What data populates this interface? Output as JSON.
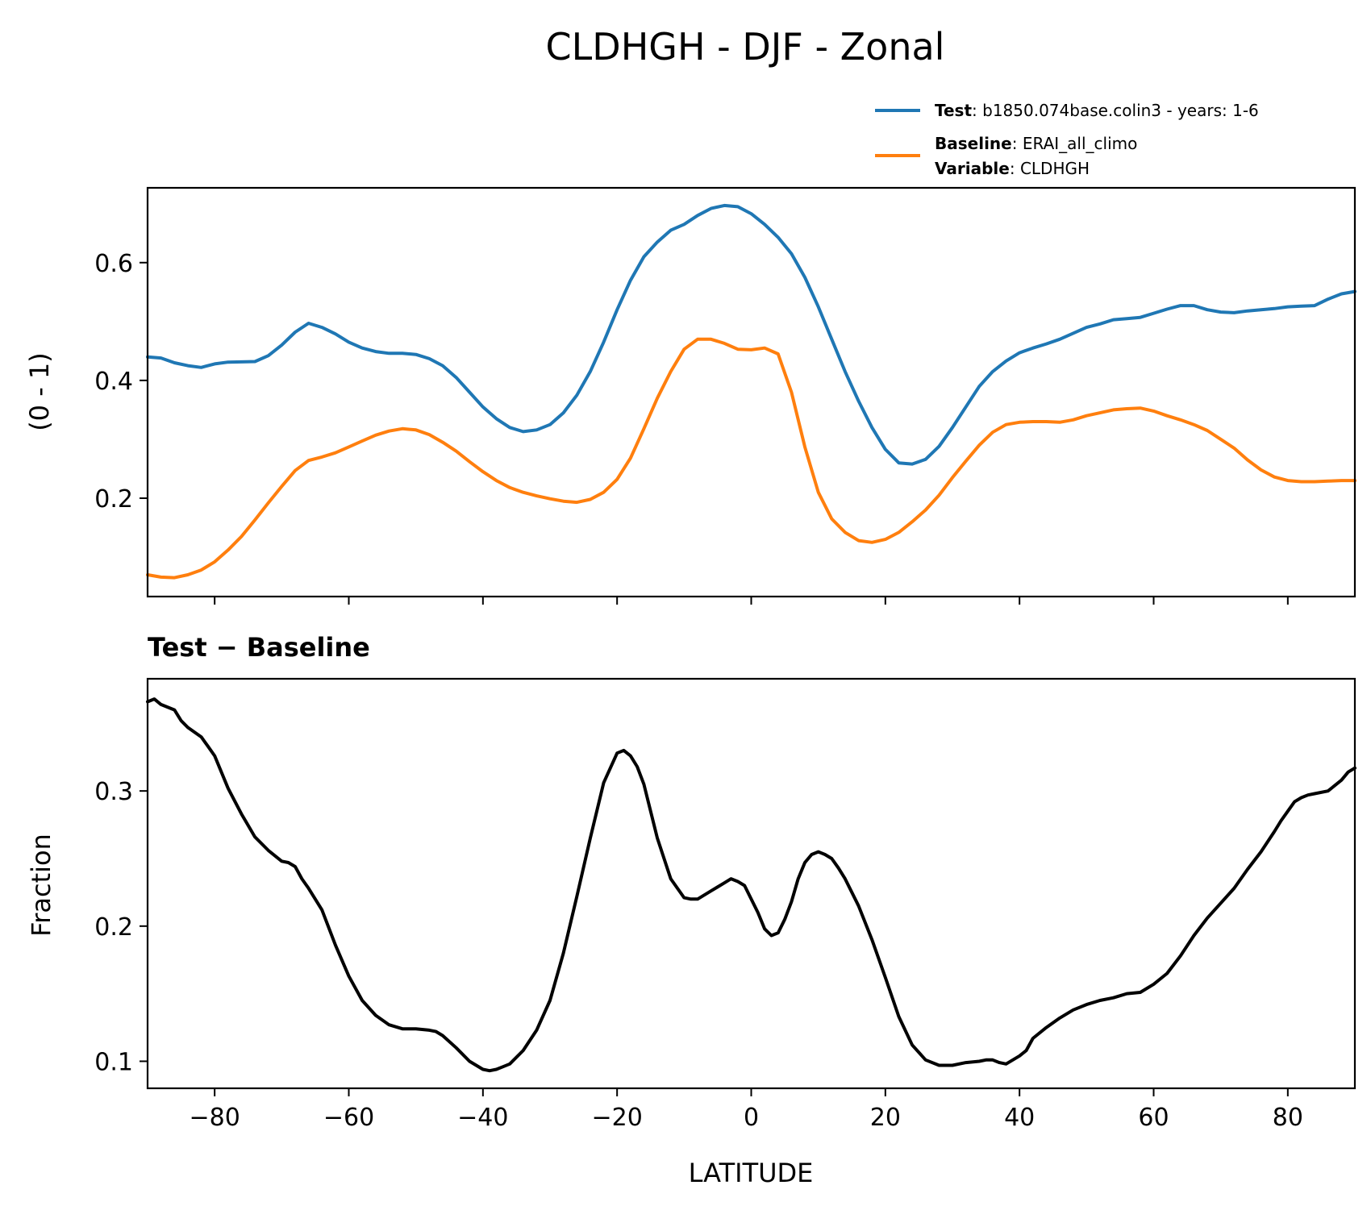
{
  "figure": {
    "title": "CLDHGH - DJF - Zonal"
  },
  "legend": {
    "test_key": "Test",
    "test_value": "b1850.074base.colin3 - years: 1-6",
    "baseline_key": "Baseline",
    "baseline_value": "ERAI_all_climo",
    "variable_key": "Variable",
    "variable_value": "CLDHGH",
    "separator": ": "
  },
  "chart_data": [
    {
      "type": "line",
      "panel": "top",
      "title": "",
      "xlabel": "",
      "ylabel": "(0 - 1)",
      "xlim": [
        -90,
        90
      ],
      "ylim": [
        0.033,
        0.727
      ],
      "xticks": [
        -80,
        -60,
        -40,
        -20,
        0,
        20,
        40,
        60,
        80
      ],
      "yticks": [
        0.2,
        0.4,
        0.6
      ],
      "ytick_labels": [
        "0.2",
        "0.4",
        "0.6"
      ],
      "grid": false,
      "legend_position": "above-right",
      "series": [
        {
          "name": "Test",
          "color": "#1f77b4",
          "x": [
            -90,
            -88,
            -86,
            -84,
            -82,
            -80,
            -78,
            -74,
            -72,
            -70,
            -68,
            -66,
            -64,
            -62,
            -60,
            -58,
            -56,
            -54,
            -52,
            -50,
            -48,
            -46,
            -44,
            -42,
            -40,
            -38,
            -36,
            -34,
            -32,
            -30,
            -28,
            -26,
            -24,
            -22,
            -20,
            -18,
            -16,
            -14,
            -12,
            -10,
            -8,
            -6,
            -4,
            -2,
            0,
            2,
            4,
            6,
            8,
            10,
            12,
            14,
            16,
            18,
            20,
            22,
            24,
            26,
            28,
            30,
            32,
            34,
            36,
            38,
            40,
            42,
            44,
            46,
            48,
            50,
            52,
            54,
            56,
            58,
            60,
            62,
            64,
            66,
            68,
            70,
            72,
            74,
            76,
            78,
            80,
            82,
            84,
            86,
            88,
            90
          ],
          "values": [
            0.44,
            0.438,
            0.43,
            0.425,
            0.422,
            0.428,
            0.431,
            0.432,
            0.442,
            0.46,
            0.482,
            0.497,
            0.49,
            0.479,
            0.465,
            0.455,
            0.449,
            0.446,
            0.446,
            0.444,
            0.437,
            0.425,
            0.405,
            0.38,
            0.355,
            0.335,
            0.32,
            0.313,
            0.316,
            0.325,
            0.345,
            0.375,
            0.415,
            0.465,
            0.52,
            0.57,
            0.61,
            0.635,
            0.655,
            0.665,
            0.68,
            0.692,
            0.697,
            0.695,
            0.683,
            0.665,
            0.643,
            0.615,
            0.575,
            0.525,
            0.47,
            0.415,
            0.365,
            0.32,
            0.283,
            0.26,
            0.258,
            0.266,
            0.288,
            0.32,
            0.355,
            0.39,
            0.415,
            0.433,
            0.447,
            0.455,
            0.462,
            0.47,
            0.48,
            0.49,
            0.496,
            0.503,
            0.505,
            0.507,
            0.514,
            0.521,
            0.527,
            0.527,
            0.52,
            0.516,
            0.515,
            0.518,
            0.52,
            0.522,
            0.525,
            0.526,
            0.527,
            0.538,
            0.547,
            0.551
          ]
        },
        {
          "name": "Baseline",
          "color": "#ff7f0e",
          "x": [
            -90,
            -88,
            -86,
            -84,
            -82,
            -80,
            -78,
            -76,
            -74,
            -72,
            -70,
            -68,
            -66,
            -64,
            -62,
            -60,
            -58,
            -56,
            -54,
            -52,
            -50,
            -48,
            -46,
            -44,
            -42,
            -40,
            -38,
            -36,
            -34,
            -32,
            -30,
            -28,
            -26,
            -24,
            -22,
            -20,
            -18,
            -16,
            -14,
            -12,
            -10,
            -8,
            -6,
            -4,
            -2,
            0,
            2,
            4,
            6,
            8,
            10,
            12,
            14,
            16,
            18,
            20,
            22,
            24,
            26,
            28,
            30,
            32,
            34,
            36,
            38,
            40,
            42,
            44,
            46,
            48,
            50,
            52,
            54,
            56,
            58,
            60,
            62,
            64,
            66,
            68,
            70,
            72,
            74,
            76,
            78,
            80,
            82,
            84,
            86,
            88,
            90
          ],
          "values": [
            0.07,
            0.066,
            0.065,
            0.07,
            0.078,
            0.092,
            0.112,
            0.135,
            0.163,
            0.192,
            0.22,
            0.247,
            0.264,
            0.27,
            0.277,
            0.287,
            0.297,
            0.307,
            0.314,
            0.318,
            0.316,
            0.308,
            0.295,
            0.28,
            0.262,
            0.245,
            0.23,
            0.218,
            0.21,
            0.204,
            0.199,
            0.195,
            0.193,
            0.198,
            0.21,
            0.232,
            0.268,
            0.318,
            0.37,
            0.415,
            0.453,
            0.47,
            0.47,
            0.463,
            0.453,
            0.452,
            0.455,
            0.445,
            0.38,
            0.287,
            0.21,
            0.165,
            0.142,
            0.128,
            0.125,
            0.13,
            0.142,
            0.16,
            0.18,
            0.205,
            0.235,
            0.263,
            0.29,
            0.312,
            0.325,
            0.329,
            0.33,
            0.33,
            0.329,
            0.333,
            0.34,
            0.345,
            0.35,
            0.352,
            0.353,
            0.348,
            0.34,
            0.333,
            0.325,
            0.315,
            0.3,
            0.285,
            0.265,
            0.248,
            0.236,
            0.23,
            0.228,
            0.228,
            0.229,
            0.23,
            0.23
          ]
        }
      ]
    },
    {
      "type": "line",
      "panel": "bottom",
      "title": "Test − Baseline",
      "xlabel": "LATITUDE",
      "ylabel": "Fraction",
      "xlim": [
        -90,
        90
      ],
      "ylim": [
        0.08,
        0.383
      ],
      "xticks": [
        -80,
        -60,
        -40,
        -20,
        0,
        20,
        40,
        60,
        80
      ],
      "xtick_labels": [
        "−80",
        "−60",
        "−40",
        "−20",
        "0",
        "20",
        "40",
        "60",
        "80"
      ],
      "yticks": [
        0.1,
        0.2,
        0.3
      ],
      "ytick_labels": [
        "0.1",
        "0.2",
        "0.3"
      ],
      "grid": false,
      "series": [
        {
          "name": "",
          "color": "#000000",
          "x": [
            -90,
            -89,
            -88,
            -86,
            -85,
            -84,
            -82,
            -81,
            -80,
            -78,
            -76,
            -74,
            -72,
            -70,
            -69,
            -68,
            -67,
            -66,
            -64,
            -62,
            -60,
            -58,
            -56,
            -54,
            -52,
            -50,
            -48,
            -47,
            -46,
            -44,
            -42,
            -40,
            -39,
            -38,
            -37,
            -36,
            -34,
            -32,
            -30,
            -28,
            -26,
            -24,
            -22,
            -20,
            -19,
            -18,
            -17,
            -16,
            -14,
            -12,
            -11,
            -10,
            -9,
            -8,
            -6,
            -4,
            -3,
            -2,
            -1,
            0,
            1,
            2,
            3,
            4,
            5,
            6,
            7,
            8,
            9,
            10,
            11,
            12,
            13,
            14,
            16,
            18,
            20,
            22,
            24,
            26,
            28,
            30,
            32,
            34,
            35,
            36,
            37,
            38,
            40,
            41,
            42,
            44,
            46,
            48,
            50,
            52,
            54,
            56,
            58,
            60,
            62,
            64,
            66,
            68,
            70,
            72,
            74,
            76,
            78,
            79,
            80,
            81,
            82,
            83,
            84,
            86,
            88,
            89,
            90
          ],
          "values": [
            0.366,
            0.368,
            0.364,
            0.36,
            0.352,
            0.347,
            0.34,
            0.333,
            0.326,
            0.302,
            0.283,
            0.266,
            0.256,
            0.248,
            0.247,
            0.244,
            0.235,
            0.228,
            0.212,
            0.186,
            0.163,
            0.145,
            0.134,
            0.127,
            0.124,
            0.124,
            0.123,
            0.122,
            0.119,
            0.11,
            0.1,
            0.094,
            0.093,
            0.094,
            0.096,
            0.098,
            0.108,
            0.123,
            0.145,
            0.18,
            0.222,
            0.265,
            0.306,
            0.328,
            0.33,
            0.326,
            0.318,
            0.305,
            0.265,
            0.235,
            0.228,
            0.221,
            0.22,
            0.22,
            0.226,
            0.232,
            0.235,
            0.233,
            0.23,
            0.22,
            0.21,
            0.198,
            0.193,
            0.195,
            0.205,
            0.218,
            0.235,
            0.247,
            0.253,
            0.255,
            0.253,
            0.25,
            0.243,
            0.235,
            0.215,
            0.19,
            0.162,
            0.133,
            0.112,
            0.101,
            0.097,
            0.097,
            0.099,
            0.1,
            0.101,
            0.101,
            0.099,
            0.098,
            0.104,
            0.108,
            0.117,
            0.125,
            0.132,
            0.138,
            0.142,
            0.145,
            0.147,
            0.15,
            0.151,
            0.157,
            0.165,
            0.178,
            0.193,
            0.206,
            0.217,
            0.228,
            0.242,
            0.255,
            0.27,
            0.278,
            0.285,
            0.292,
            0.295,
            0.297,
            0.298,
            0.3,
            0.308,
            0.314,
            0.317
          ]
        }
      ]
    }
  ]
}
